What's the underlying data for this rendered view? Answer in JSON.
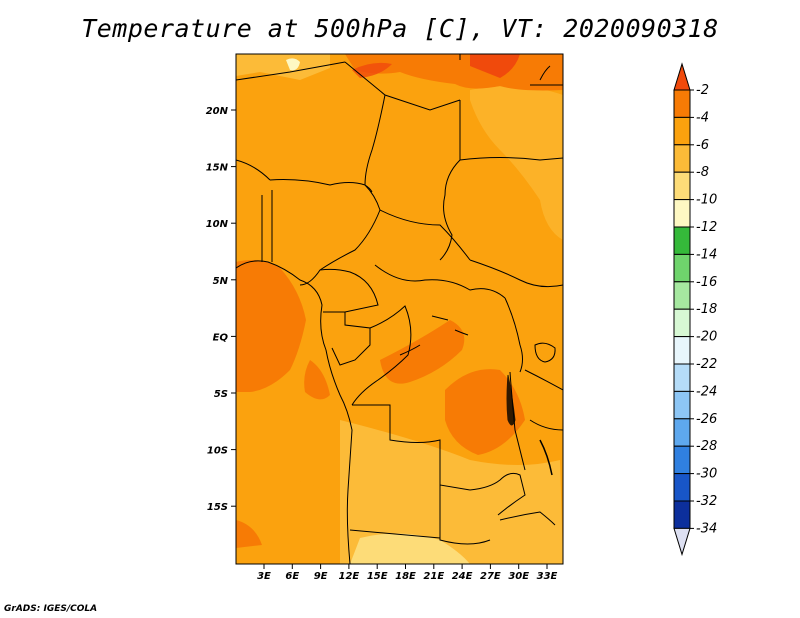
{
  "title": "Temperature at 500hPa [C], VT: 2020090318",
  "credit": "GrADS: IGES/COLA",
  "map": {
    "lat_labels": [
      "20N",
      "15N",
      "10N",
      "5N",
      "EQ",
      "5S",
      "10S",
      "15S"
    ],
    "lon_labels": [
      "3E",
      "6E",
      "9E",
      "12E",
      "15E",
      "18E",
      "21E",
      "24E",
      "27E",
      "30E",
      "33E"
    ],
    "field": "Temperature at 500hPa",
    "units": "C"
  },
  "colorbar": {
    "labels": [
      "-2",
      "-4",
      "-6",
      "-8",
      "-10",
      "-12",
      "-14",
      "-16",
      "-18",
      "-20",
      "-22",
      "-24",
      "-26",
      "-28",
      "-30",
      "-32",
      "-34"
    ],
    "colors": [
      "#f04a0c",
      "#f77b05",
      "#fba20e",
      "#fcbb38",
      "#fddc78",
      "#fef8c3",
      "#35b93a",
      "#6fd46c",
      "#a6e8a0",
      "#d7f8d4",
      "#e8f6fc",
      "#b5dcf8",
      "#8dc6f5",
      "#5ea8ee",
      "#3080e0",
      "#1856c8",
      "#0c2f9c",
      "#0a0a6c",
      "#dde0f2"
    ]
  }
}
